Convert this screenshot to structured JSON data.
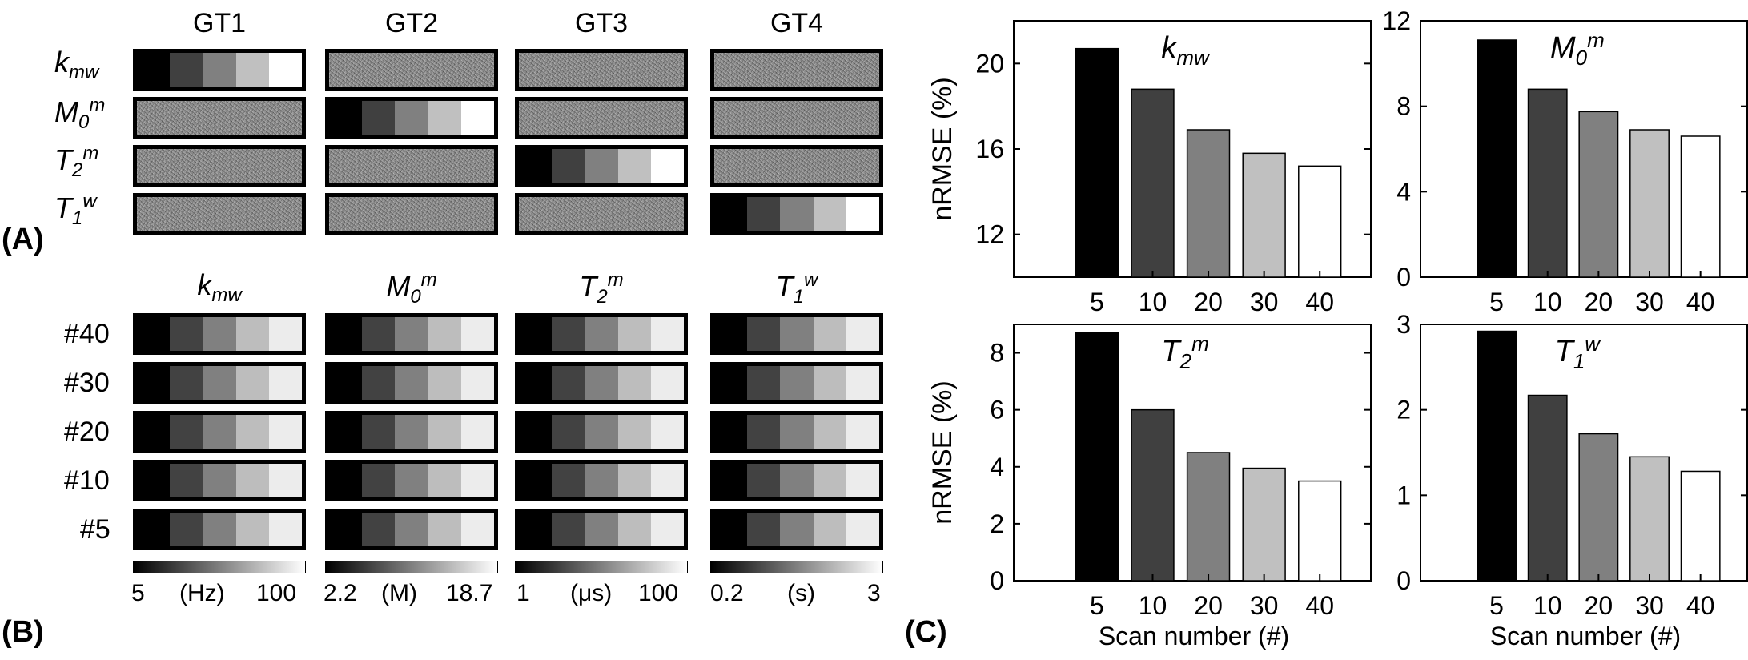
{
  "panel_labels": {
    "a": "(A)",
    "b": "(B)",
    "c": "(C)"
  },
  "panel_a": {
    "columns": [
      "GT1",
      "GT2",
      "GT3",
      "GT4"
    ],
    "rows": [
      {
        "base": "k",
        "sub": "mw",
        "sup": ""
      },
      {
        "base": "M",
        "sub": "0",
        "sup": "m"
      },
      {
        "base": "T",
        "sub": "2",
        "sup": "m"
      },
      {
        "base": "T",
        "sub": "1",
        "sup": "w"
      }
    ]
  },
  "panel_b": {
    "columns": [
      {
        "base": "k",
        "sub": "mw",
        "sup": ""
      },
      {
        "base": "M",
        "sub": "0",
        "sup": "m"
      },
      {
        "base": "T",
        "sub": "2",
        "sup": "m"
      },
      {
        "base": "T",
        "sub": "1",
        "sup": "w"
      }
    ],
    "rows": [
      "#40",
      "#30",
      "#20",
      "#10",
      "#5"
    ],
    "colorbars": [
      {
        "min": "5",
        "unit": "(Hz)",
        "max": "100"
      },
      {
        "min": "2.2",
        "unit": "(M)",
        "max": "18.7"
      },
      {
        "min": "1",
        "unit": "(μs)",
        "max": "100"
      },
      {
        "min": "0.2",
        "unit": "(s)",
        "max": "3"
      }
    ]
  },
  "chart_data": [
    {
      "type": "bar",
      "title_base": "k",
      "title_sub": "mw",
      "title_sup": "",
      "categories": [
        "5",
        "10",
        "20",
        "30",
        "40"
      ],
      "values": [
        20.7,
        18.8,
        16.9,
        15.8,
        15.2
      ],
      "ylim": [
        10,
        22
      ],
      "yticks": [
        12,
        16,
        20
      ],
      "ylabel": "nRMSE (%)",
      "xlabel": "",
      "bar_colors": [
        "#000000",
        "#404040",
        "#808080",
        "#c0c0c0",
        "#ffffff"
      ]
    },
    {
      "type": "bar",
      "title_base": "M",
      "title_sub": "0",
      "title_sup": "m",
      "categories": [
        "5",
        "10",
        "20",
        "30",
        "40"
      ],
      "values": [
        11.1,
        8.8,
        7.75,
        6.9,
        6.6
      ],
      "ylim": [
        0,
        12
      ],
      "yticks": [
        0,
        4,
        8,
        12
      ],
      "ylabel": "",
      "xlabel": "",
      "bar_colors": [
        "#000000",
        "#404040",
        "#808080",
        "#c0c0c0",
        "#ffffff"
      ]
    },
    {
      "type": "bar",
      "title_base": "T",
      "title_sub": "2",
      "title_sup": "m",
      "categories": [
        "5",
        "10",
        "20",
        "30",
        "40"
      ],
      "values": [
        8.7,
        6.0,
        4.5,
        3.95,
        3.5
      ],
      "ylim": [
        0,
        9
      ],
      "yticks": [
        0,
        2,
        4,
        6,
        8
      ],
      "ylabel": "nRMSE (%)",
      "xlabel": "Scan number (#)",
      "bar_colors": [
        "#000000",
        "#404040",
        "#808080",
        "#c0c0c0",
        "#ffffff"
      ]
    },
    {
      "type": "bar",
      "title_base": "T",
      "title_sub": "1",
      "title_sup": "w",
      "categories": [
        "5",
        "10",
        "20",
        "30",
        "40"
      ],
      "values": [
        2.92,
        2.17,
        1.72,
        1.45,
        1.28
      ],
      "ylim": [
        0,
        3
      ],
      "yticks": [
        0,
        1,
        2,
        3
      ],
      "ylabel": "",
      "xlabel": "Scan number (#)",
      "bar_colors": [
        "#000000",
        "#404040",
        "#808080",
        "#c0c0c0",
        "#ffffff"
      ]
    }
  ]
}
